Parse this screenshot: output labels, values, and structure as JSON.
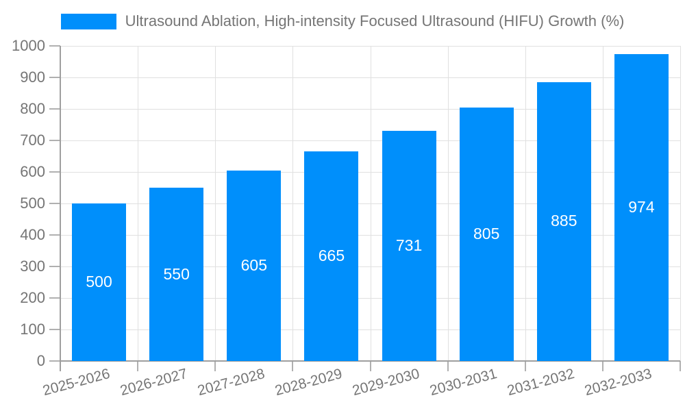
{
  "chart_data": {
    "type": "bar",
    "legend_label": "Ultrasound Ablation, High-intensity Focused Ultrasound (HIFU) Growth (%)",
    "series": [
      {
        "name": "Ultrasound Ablation, High-intensity Focused Ultrasound (HIFU) Growth (%)",
        "values": [
          500,
          550,
          605,
          665,
          731,
          805,
          885,
          974
        ]
      }
    ],
    "categories": [
      "2025-2026",
      "2026-2027",
      "2027-2028",
      "2028-2029",
      "2029-2030",
      "2030-2031",
      "2031-2032",
      "2032-2033"
    ],
    "data_labels": [
      "500",
      "550",
      "605",
      "665",
      "731",
      "805",
      "885",
      "974"
    ],
    "y_ticks": [
      "0",
      "100",
      "200",
      "300",
      "400",
      "500",
      "600",
      "700",
      "800",
      "900",
      "1000"
    ],
    "ylim": [
      0,
      1000
    ],
    "xlabel": "",
    "ylabel": "",
    "grid": "on",
    "legend_position": "top-center",
    "colors": {
      "bar": "#008ffb",
      "bar_label_text": "#ffffff",
      "axis_text": "#757575",
      "gridline": "#e0e0e0",
      "axis_line": "#9e9e9e"
    }
  }
}
